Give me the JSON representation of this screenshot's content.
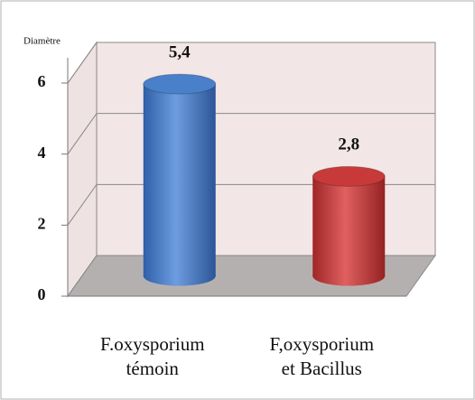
{
  "chart_data": {
    "type": "bar3d",
    "y_label": "Diamètre",
    "categories": [
      [
        "F.oxysporium",
        "témoin"
      ],
      [
        "F,oxysporium",
        "et Bacillus"
      ]
    ],
    "values": [
      5.4,
      2.8
    ],
    "value_labels": [
      "5,4",
      "2,8"
    ],
    "colors": [
      "#4a7fc9",
      "#c83a3a"
    ],
    "ylim": [
      0,
      6
    ],
    "yticks": [
      0,
      2,
      4,
      6
    ],
    "grid": true
  }
}
